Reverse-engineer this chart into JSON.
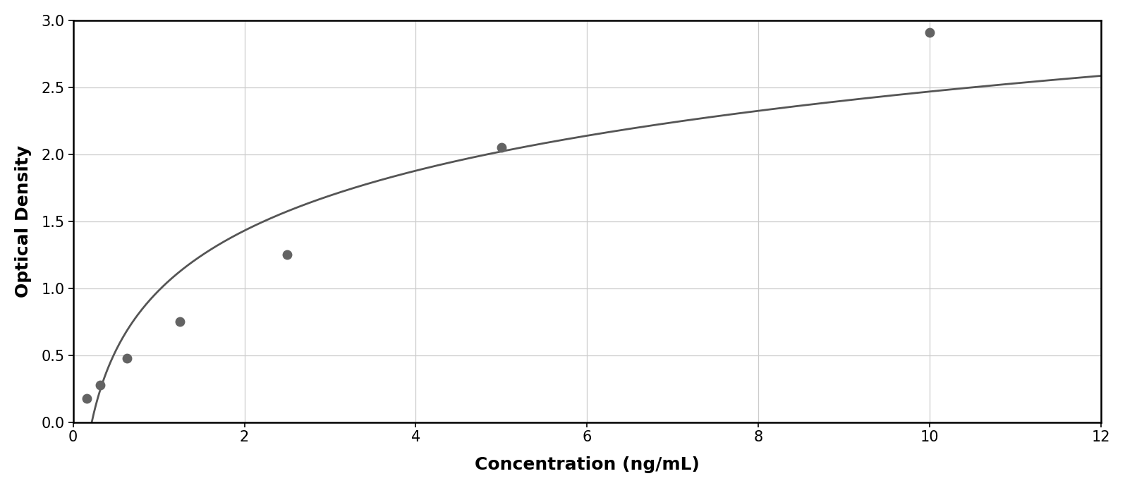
{
  "x_data": [
    0.156,
    0.313,
    0.625,
    1.25,
    2.5,
    5.0,
    10.0
  ],
  "y_data": [
    0.175,
    0.28,
    0.475,
    0.75,
    1.25,
    2.05,
    2.91
  ],
  "xlabel": "Concentration (ng/mL)",
  "ylabel": "Optical Density",
  "xlim": [
    0,
    12
  ],
  "ylim": [
    0,
    3
  ],
  "xticks": [
    0,
    2,
    4,
    6,
    8,
    10,
    12
  ],
  "yticks": [
    0,
    0.5,
    1.0,
    1.5,
    2.0,
    2.5,
    3.0
  ],
  "marker_color": "#636363",
  "line_color": "#555555",
  "marker_size": 9,
  "line_width": 2.0,
  "grid_color": "#cccccc",
  "background_color": "#ffffff",
  "outer_background": "#ffffff",
  "xlabel_fontsize": 18,
  "ylabel_fontsize": 18,
  "tick_fontsize": 15,
  "xlabel_fontweight": "bold",
  "ylabel_fontweight": "bold"
}
